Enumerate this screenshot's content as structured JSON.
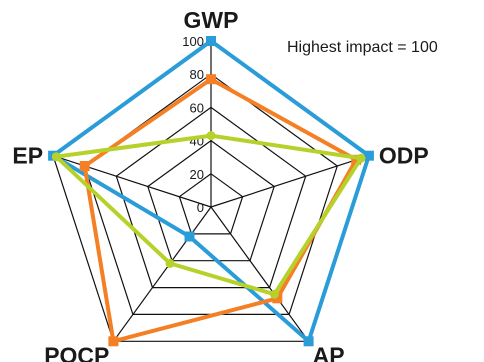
{
  "chart_data": {
    "type": "radar",
    "title": "",
    "note": "Highest impact = 100",
    "axes": [
      "GWP",
      "ODP",
      "AP",
      "POCP",
      "EP"
    ],
    "ticks": [
      0,
      20,
      40,
      60,
      80,
      100
    ],
    "range": [
      0,
      100
    ],
    "series": [
      {
        "color": "#2a9cd8",
        "marker": "square",
        "values": [
          100,
          100,
          100,
          22,
          100
        ]
      },
      {
        "color": "#f47f24",
        "marker": "square",
        "values": [
          77,
          92,
          68,
          100,
          80
        ]
      },
      {
        "color": "#b6d22a",
        "marker": "circle",
        "values": [
          43,
          95,
          65,
          42,
          98
        ]
      }
    ]
  }
}
